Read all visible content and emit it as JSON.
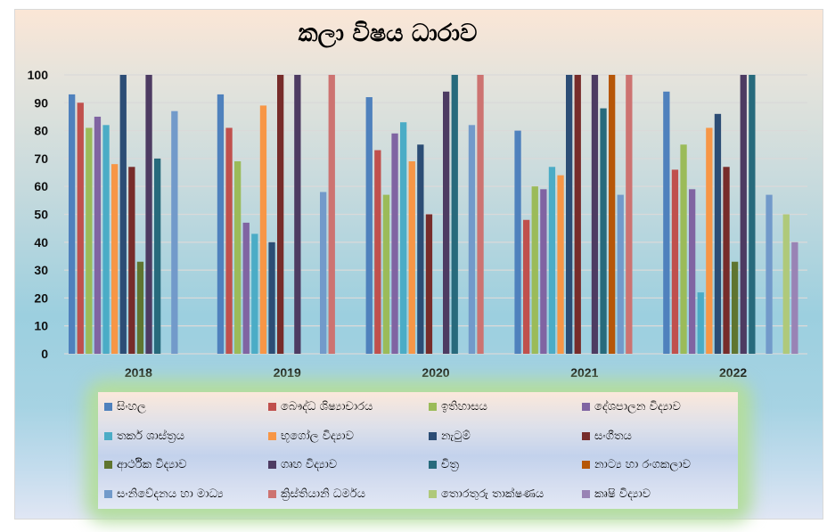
{
  "chart_data": {
    "type": "bar",
    "title": "කලා විෂය ධාරාව",
    "xlabel": "",
    "ylabel": "",
    "ylim": [
      0,
      100
    ],
    "yticks": [
      0,
      10,
      20,
      30,
      40,
      50,
      60,
      70,
      80,
      90,
      100
    ],
    "grid": true,
    "legend_position": "bottom",
    "categories": [
      "2018",
      "2019",
      "2020",
      "2021",
      "2022"
    ],
    "series": [
      {
        "name": "සිංහල",
        "color": "#4f81bd",
        "values": [
          93,
          93,
          92,
          80,
          94
        ]
      },
      {
        "name": "බෞද්ධ ශිෂ්‍යාචාරය",
        "color": "#c0504d",
        "values": [
          90,
          81,
          73,
          48,
          66
        ]
      },
      {
        "name": "ඉතිහාසය",
        "color": "#9bbb59",
        "values": [
          81,
          69,
          57,
          60,
          75
        ]
      },
      {
        "name": "දේශපාලන විද්‍යාව",
        "color": "#8064a2",
        "values": [
          85,
          47,
          79,
          59,
          59
        ]
      },
      {
        "name": "තර්ක ශාස්ත්‍රය",
        "color": "#4bacc6",
        "values": [
          82,
          43,
          83,
          67,
          22
        ]
      },
      {
        "name": "භූගෝල විද්‍යාව",
        "color": "#f79646",
        "values": [
          68,
          89,
          69,
          64,
          81
        ]
      },
      {
        "name": "නැටුම්",
        "color": "#2c4d75",
        "values": [
          100,
          40,
          75,
          100,
          86
        ]
      },
      {
        "name": "සංගීතය",
        "color": "#772c2a",
        "values": [
          67,
          100,
          50,
          100,
          67
        ]
      },
      {
        "name": "ආර්ථික විද්‍යාව",
        "color": "#5f7530",
        "values": [
          33,
          null,
          null,
          null,
          33
        ]
      },
      {
        "name": "ගෘහ විද්‍යාව",
        "color": "#4d3b62",
        "values": [
          100,
          100,
          94,
          100,
          100
        ]
      },
      {
        "name": "චිත්‍ර",
        "color": "#276a7c",
        "values": [
          70,
          null,
          100,
          88,
          100
        ]
      },
      {
        "name": "නාට්‍ය හා රංගකලාව",
        "color": "#b65708",
        "values": [
          null,
          null,
          null,
          100,
          null
        ]
      },
      {
        "name": "සංනිවේදනය හා මාධ්‍ය",
        "color": "#729aca",
        "values": [
          87,
          58,
          82,
          57,
          57
        ]
      },
      {
        "name": "ක්‍රිස්තියානි ධර්මය",
        "color": "#cd7371",
        "values": [
          null,
          100,
          100,
          100,
          null
        ]
      },
      {
        "name": "තොරතුරු තාක්ෂණය",
        "color": "#afc97a",
        "values": [
          null,
          null,
          null,
          null,
          50
        ]
      },
      {
        "name": "කෘෂි විද්‍යාව",
        "color": "#9983b5",
        "values": [
          null,
          null,
          null,
          null,
          40
        ]
      }
    ]
  }
}
